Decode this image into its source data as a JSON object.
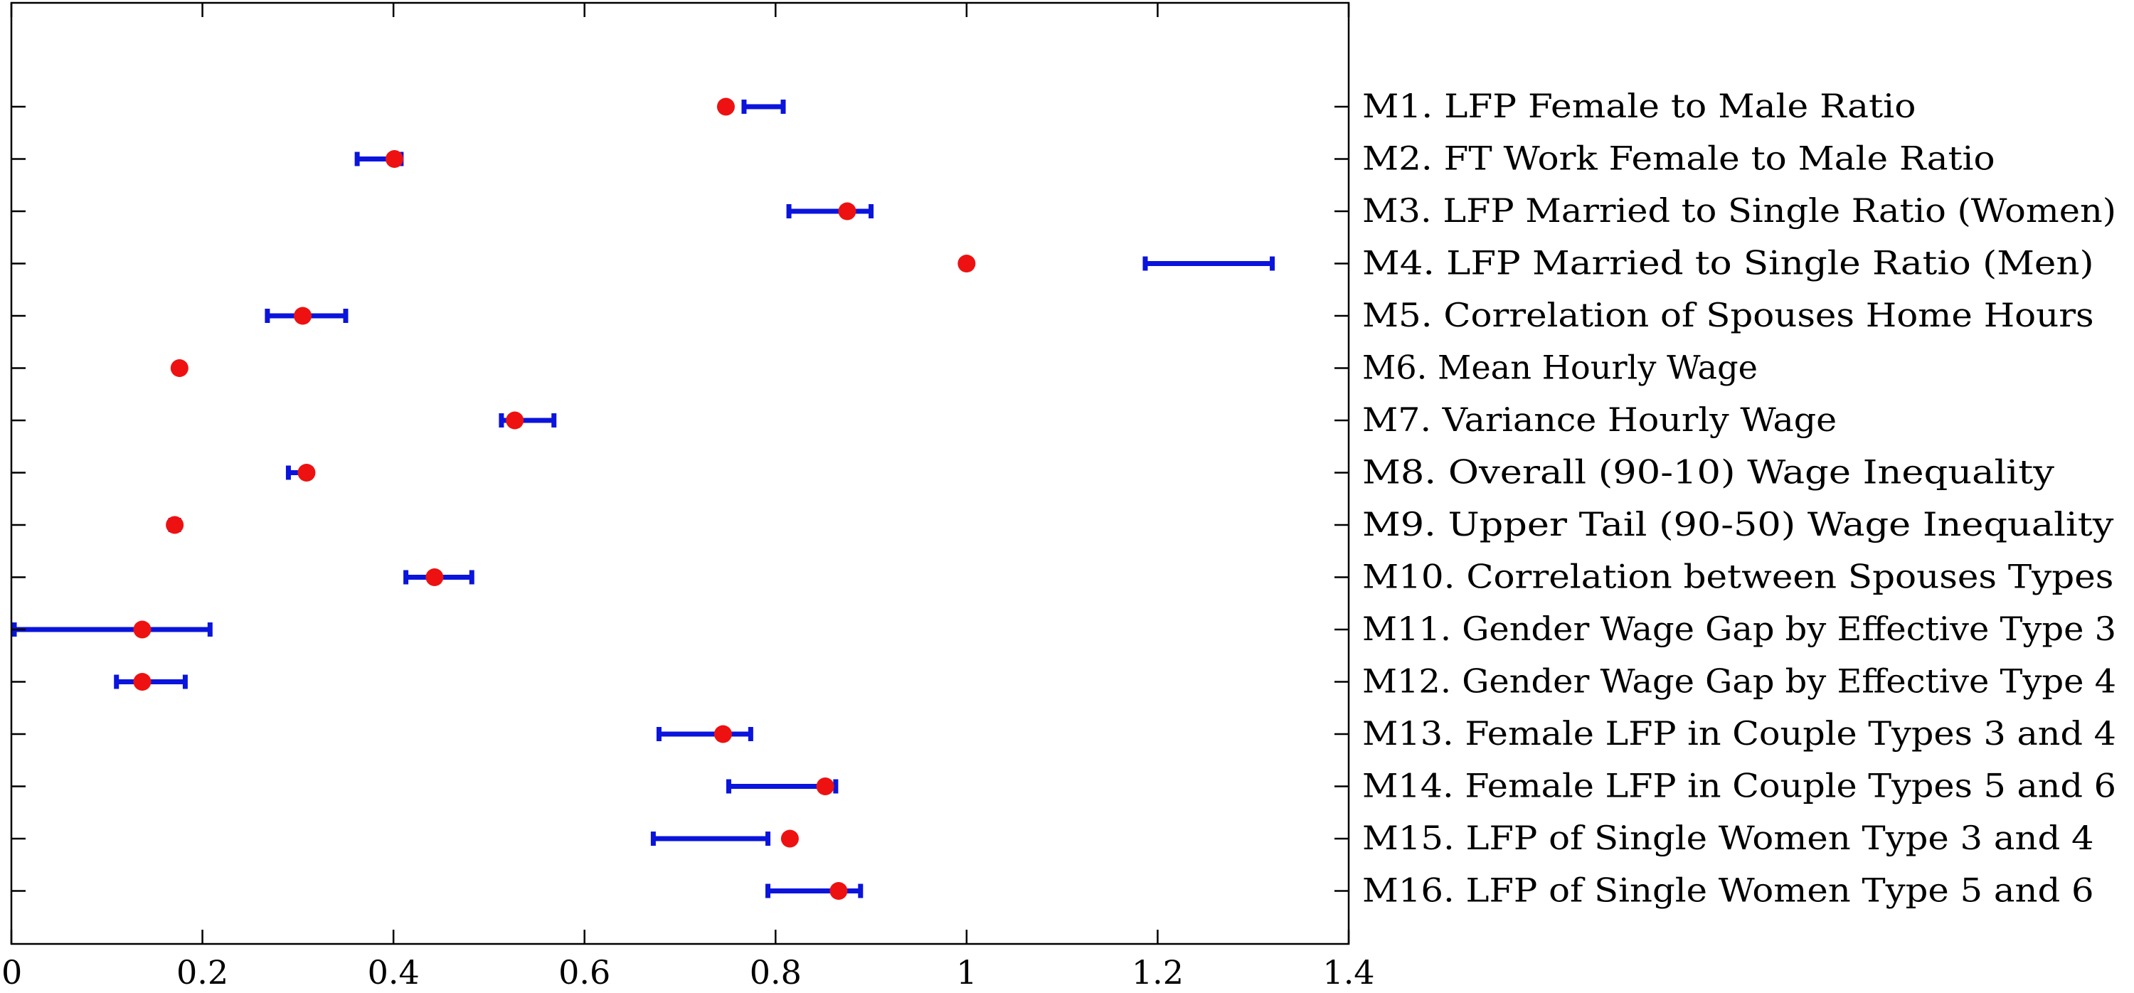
{
  "chart_data": {
    "type": "scatter",
    "title": "",
    "xlabel": "",
    "ylabel": "",
    "xlim": [
      0,
      1.4
    ],
    "xticks": [
      "0",
      "0.2",
      "0.4",
      "0.6",
      "0.8",
      "1",
      "1.2",
      "1.4"
    ],
    "grid": false,
    "colors": {
      "point": "#ee1111",
      "errorbar": "#0a14dc",
      "axis": "#000000"
    },
    "series": [
      {
        "marker": "point",
        "values": [
          0.748,
          0.401,
          0.875,
          1.0,
          0.305,
          0.176,
          0.527,
          0.309,
          0.171,
          0.443,
          0.137,
          0.137,
          0.745,
          0.852,
          0.815,
          0.866
        ]
      },
      {
        "marker": "errorbar",
        "intervals": [
          [
            0.767,
            0.808
          ],
          [
            0.362,
            0.408
          ],
          [
            0.814,
            0.9
          ],
          [
            1.187,
            1.32
          ],
          [
            0.268,
            0.35
          ],
          [
            0.174,
            0.178
          ],
          [
            0.513,
            0.568
          ],
          [
            0.29,
            0.31
          ],
          [
            0.167,
            0.175
          ],
          [
            0.413,
            0.482
          ],
          [
            0.003,
            0.208
          ],
          [
            0.11,
            0.182
          ],
          [
            0.678,
            0.774
          ],
          [
            0.751,
            0.863
          ],
          [
            0.672,
            0.792
          ],
          [
            0.792,
            0.889
          ]
        ]
      }
    ],
    "labels": [
      "M1. LFP Female to Male Ratio",
      "M2. FT Work Female to Male Ratio",
      "M3. LFP Married to Single Ratio (Women)",
      "M4. LFP Married to Single Ratio (Men)",
      "M5. Correlation of Spouses Home Hours",
      "M6. Mean Hourly Wage",
      "M7. Variance Hourly Wage",
      "M8. Overall (90-10) Wage Inequality",
      "M9. Upper Tail (90-50) Wage Inequality",
      "M10. Correlation between Spouses Types",
      "M11. Gender Wage Gap by Effective Type 3",
      "M12. Gender Wage Gap by Effective Type 4",
      "M13. Female LFP in Couple Types 3 and 4",
      "M14. Female LFP in Couple Types 5 and 6",
      "M15. LFP of Single Women Type 3 and 4",
      "M16. LFP of Single Women Type 5 and 6"
    ]
  }
}
